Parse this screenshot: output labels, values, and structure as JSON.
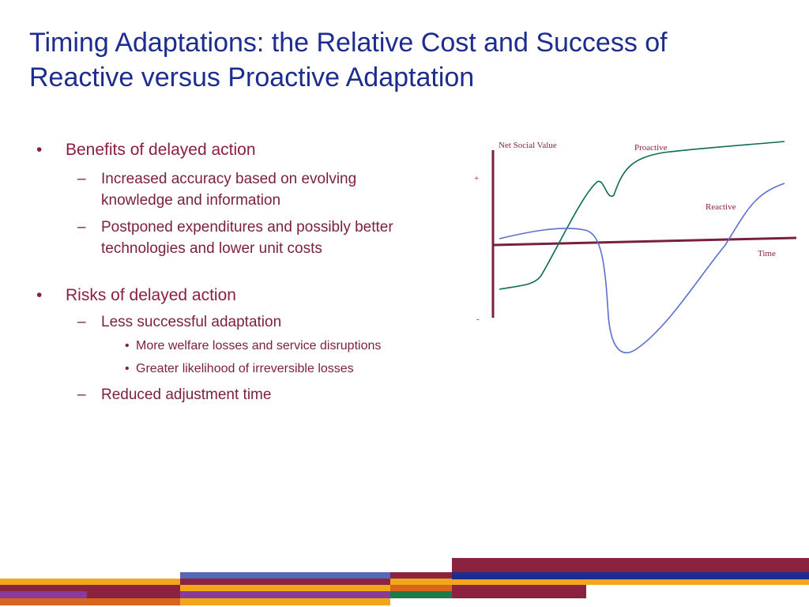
{
  "slide": {
    "title_line1": "Timing Adaptations: the Relative Cost and Success of",
    "title_line2": "Reactive versus Proactive Adaptation"
  },
  "bullets": {
    "benefits": {
      "heading": "Benefits of delayed action",
      "items": [
        "Increased accuracy based on evolving knowledge and information",
        "Postponed expenditures and possibly better technologies and lower unit costs"
      ]
    },
    "risks": {
      "heading": "Risks of delayed action",
      "items": [
        {
          "label": "Less successful adaptation",
          "subitems": [
            "More welfare losses and service disruptions",
            "Greater likelihood of irreversible losses"
          ]
        },
        {
          "label": "Reduced adjustment time"
        }
      ]
    }
  },
  "diagram": {
    "y_axis_label": "Net Social Value",
    "plus_sign": "+",
    "minus_sign": "-",
    "x_axis_label": "Time",
    "proactive_label": "Proactive",
    "reactive_label": "Reactive",
    "colors": {
      "axis": "#7a1f3d",
      "proactive": "#0e6b57",
      "reactive": "#5a6fcf",
      "label": "#8b1f3f"
    }
  },
  "colors": {
    "title": "#1c2c8f",
    "text": "#8b1f3f",
    "stripe_maroon": "#8b2240",
    "stripe_gold": "#f0a81a",
    "stripe_blue": "#5468b8",
    "stripe_purple": "#8a3a9a",
    "stripe_orange": "#d9641e",
    "stripe_green": "#1f7a4a",
    "stripe_navy": "#1c2c8f"
  }
}
